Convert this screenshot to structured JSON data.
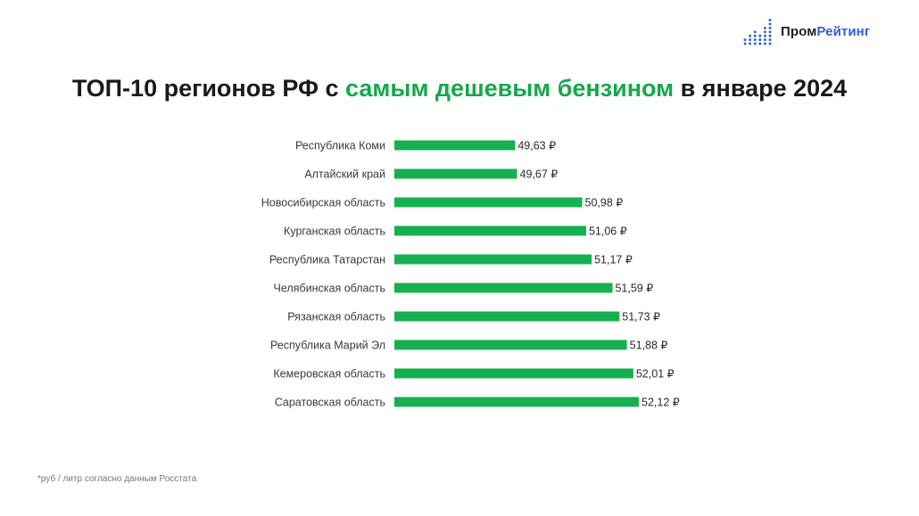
{
  "brand": {
    "name_part1": "Пром",
    "name_part2": "Рейтинг",
    "colors": {
      "dark": "#1f1f1f",
      "blue": "#2b5fd9"
    },
    "icon": "bar-dots-logo-icon"
  },
  "title": {
    "part1": "ТОП-10 регионов РФ с ",
    "accent": "самым дешевым бензином",
    "part2": " в январе 2024",
    "accent_color": "#16a84a"
  },
  "chart_data": {
    "type": "bar",
    "orientation": "horizontal",
    "categories": [
      "Республика Коми",
      "Алтайский край",
      "Новосибирская область",
      "Курганская область",
      "Республика Татарстан",
      "Челябинская область",
      "Рязанская область",
      "Республика Марий Эл",
      "Кемеровская область",
      "Саратовская область"
    ],
    "values": [
      49.63,
      49.67,
      50.98,
      51.06,
      51.17,
      51.59,
      51.73,
      51.88,
      52.01,
      52.12
    ],
    "value_labels": [
      "49,63 ₽",
      "49,67 ₽",
      "50,98 ₽",
      "51,06 ₽",
      "51,17 ₽",
      "51,59 ₽",
      "51,73 ₽",
      "51,88 ₽",
      "52,01 ₽",
      "52,12 ₽"
    ],
    "xlim": [
      47.2,
      52.12
    ],
    "bar_color": "#16b04f",
    "grid": false,
    "legend": "none"
  },
  "footnote": "*руб / литр согласно данным Росстата"
}
